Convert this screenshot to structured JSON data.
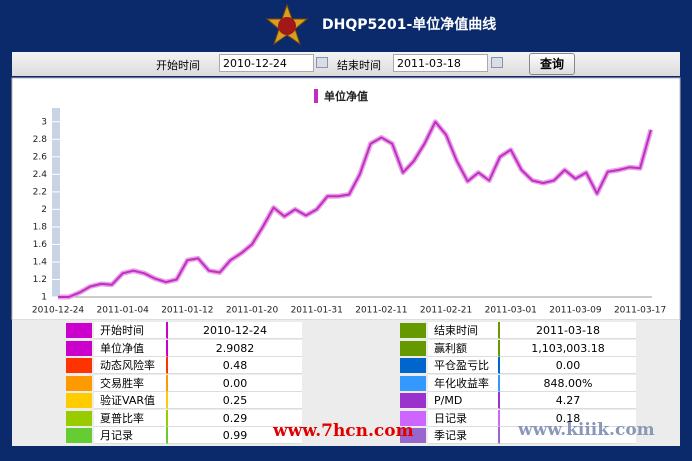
{
  "header": {
    "title": "DHQP5201-单位净值曲线"
  },
  "toolbar": {
    "start_label": "开始时间",
    "start_value": "2010-12-24",
    "end_label": "结束时间",
    "end_value": "2011-03-18",
    "button": "查询"
  },
  "chart_data": {
    "type": "line",
    "legend": "单位净值",
    "categories": [
      "2010-12-24",
      null,
      null,
      null,
      null,
      null,
      "2011-01-04",
      null,
      null,
      null,
      null,
      null,
      "2011-01-12",
      null,
      null,
      null,
      null,
      null,
      "2011-01-20",
      null,
      null,
      null,
      null,
      null,
      "2011-01-31",
      null,
      null,
      null,
      null,
      null,
      "2011-02-11",
      null,
      null,
      null,
      null,
      null,
      "2011-02-21",
      null,
      null,
      null,
      null,
      null,
      "2011-03-01",
      null,
      null,
      null,
      null,
      null,
      "2011-03-09",
      null,
      null,
      null,
      null,
      null,
      "2011-03-17",
      null
    ],
    "series": [
      {
        "name": "单位净值",
        "color": "#c030c0",
        "values": [
          1.0,
          1.0,
          1.05,
          1.12,
          1.15,
          1.14,
          1.27,
          1.3,
          1.27,
          1.21,
          1.17,
          1.2,
          1.42,
          1.44,
          1.3,
          1.28,
          1.42,
          1.5,
          1.6,
          1.8,
          2.02,
          1.92,
          2.0,
          1.93,
          2.0,
          2.15,
          2.15,
          2.17,
          2.4,
          2.75,
          2.82,
          2.75,
          2.42,
          2.55,
          2.75,
          3.0,
          2.85,
          2.55,
          2.32,
          2.42,
          2.33,
          2.6,
          2.68,
          2.45,
          2.33,
          2.3,
          2.33,
          2.45,
          2.35,
          2.42,
          2.18,
          2.43,
          2.45,
          2.48,
          2.47,
          2.9082
        ]
      }
    ],
    "ylim": [
      1,
      3.1
    ],
    "yticks": [
      1,
      1.2,
      1.4,
      1.6,
      1.8,
      2,
      2.2,
      2.4,
      2.6,
      2.8,
      3
    ]
  },
  "stats": {
    "left": [
      {
        "label": "开始时间",
        "value": "2010-12-24",
        "color": "#cc00cc"
      },
      {
        "label": "单位净值",
        "value": "2.9082",
        "color": "#cc00cc"
      },
      {
        "label": "动态风险率",
        "value": "0.48",
        "color": "#ff3300"
      },
      {
        "label": "交易胜率",
        "value": "0.00",
        "color": "#ff9900"
      },
      {
        "label": "验证VAR值",
        "value": "0.25",
        "color": "#ffcc00"
      },
      {
        "label": "夏普比率",
        "value": "0.29",
        "color": "#99cc00"
      },
      {
        "label": "月记录",
        "value": "0.99",
        "color": "#66cc33"
      }
    ],
    "right": [
      {
        "label": "结束时间",
        "value": "2011-03-18",
        "color": "#669900"
      },
      {
        "label": "赢利额",
        "value": "1,103,003.18",
        "color": "#669900"
      },
      {
        "label": "平仓盈亏比",
        "value": "0.00",
        "color": "#0066cc"
      },
      {
        "label": "年化收益率",
        "value": "848.00%",
        "color": "#3399ff"
      },
      {
        "label": "P/MD",
        "value": "4.27",
        "color": "#9933cc"
      },
      {
        "label": "日记录",
        "value": "0.18",
        "color": "#cc66ff"
      },
      {
        "label": "季记录",
        "color": "#9966cc"
      }
    ]
  },
  "watermarks": [
    "www.7hcn.com",
    "www.kiiik.com"
  ]
}
